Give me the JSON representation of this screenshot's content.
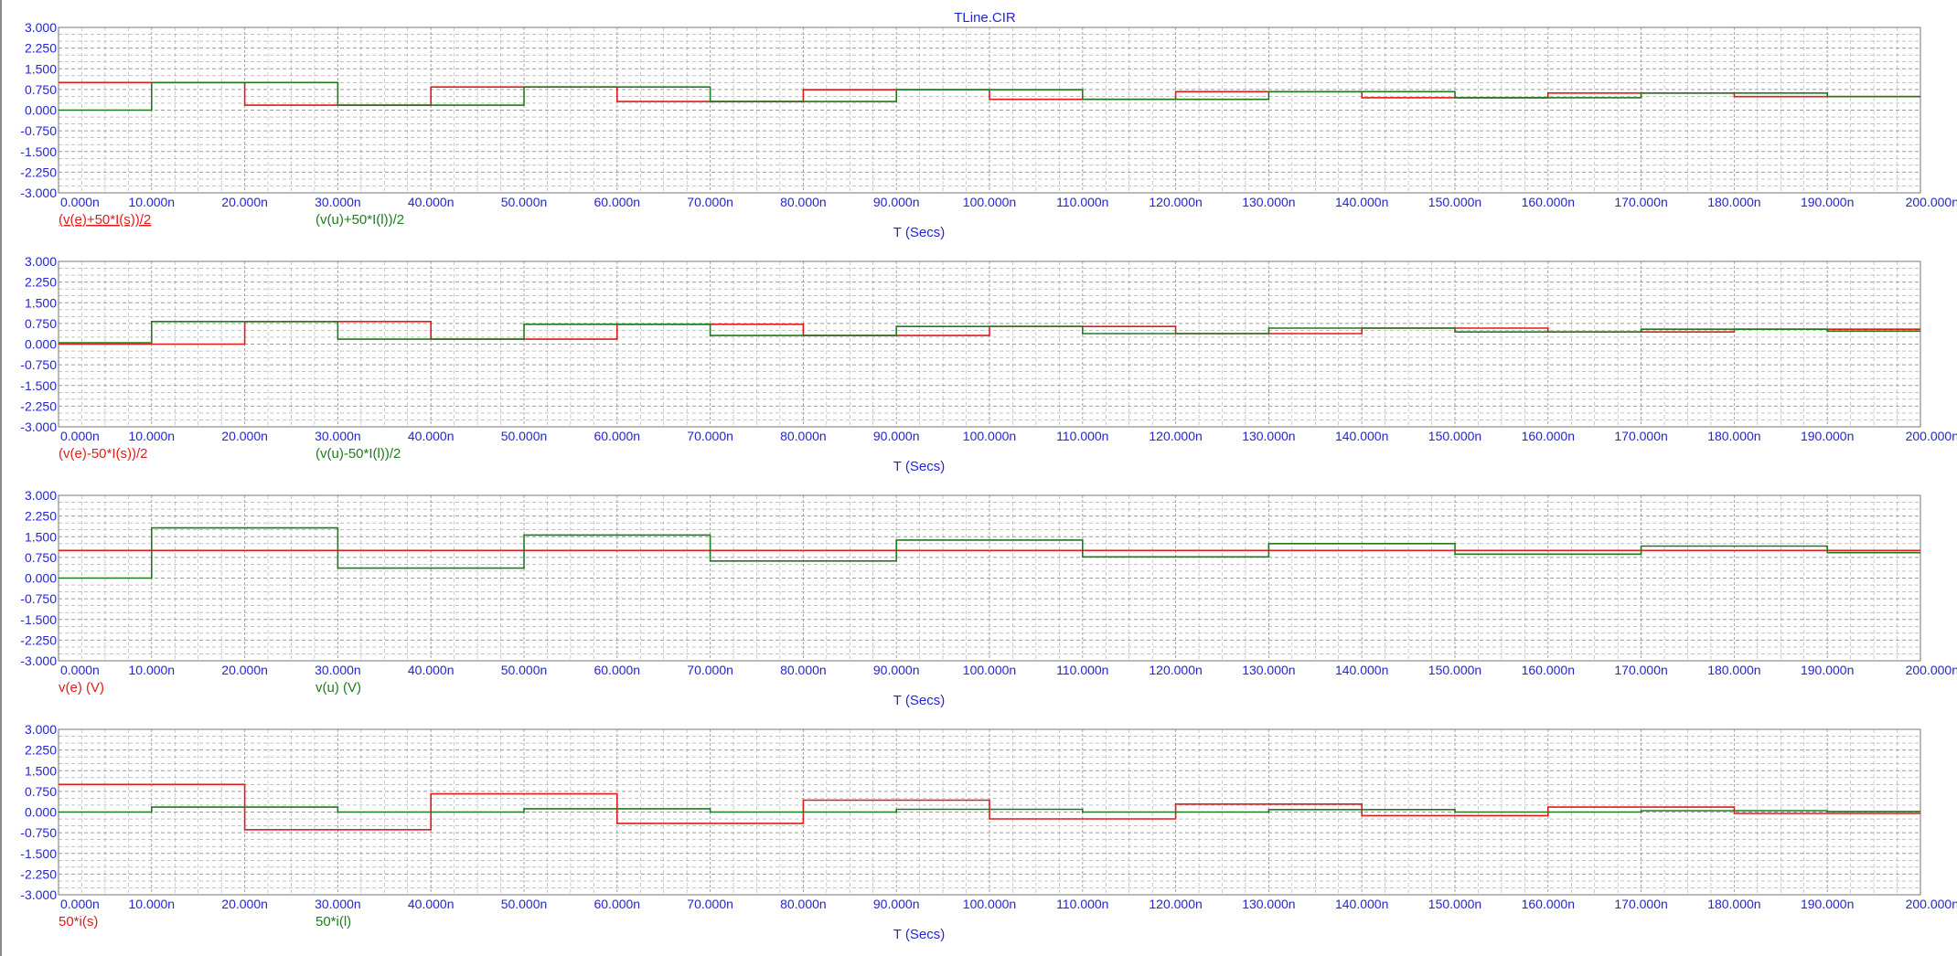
{
  "title": "TLine.CIR",
  "colors": {
    "series1": "#e41a1a",
    "series2": "#1f7a1f",
    "text": "#2424d8",
    "grid": "#9a9a9a",
    "frame": "#8c8c8c"
  },
  "chart_data": [
    {
      "type": "line",
      "step": true,
      "xlabel": "T (Secs)",
      "xlim": [
        0,
        200
      ],
      "ylim": [
        -3,
        3
      ],
      "grid": true,
      "xticks": [
        "0.000n",
        "10.000n",
        "20.000n",
        "30.000n",
        "40.000n",
        "50.000n",
        "60.000n",
        "70.000n",
        "80.000n",
        "90.000n",
        "100.000n",
        "110.000n",
        "120.000n",
        "130.000n",
        "140.000n",
        "150.000n",
        "160.000n",
        "170.000n",
        "180.000n",
        "190.000n",
        "200.000n"
      ],
      "yticks": [
        "3.000",
        "2.250",
        "1.500",
        "0.750",
        "0.000",
        "-0.750",
        "-1.500",
        "-2.250",
        "-3.000"
      ],
      "series": [
        {
          "name": "(v(e)+50*I(s))/2",
          "color": "#e41a1a",
          "underline": true,
          "x": [
            0,
            10,
            20,
            30,
            40,
            50,
            60,
            70,
            80,
            90,
            100,
            110,
            120,
            130,
            140,
            150,
            160,
            170,
            180,
            190
          ],
          "values": [
            1.0,
            1.0,
            0.18,
            0.18,
            0.84,
            0.84,
            0.31,
            0.31,
            0.74,
            0.74,
            0.39,
            0.39,
            0.67,
            0.67,
            0.45,
            0.45,
            0.62,
            0.62,
            0.49,
            0.49
          ]
        },
        {
          "name": "(v(u)+50*I(l))/2",
          "color": "#1f7a1f",
          "underline": false,
          "x": [
            0,
            10,
            20,
            30,
            40,
            50,
            60,
            70,
            80,
            90,
            100,
            110,
            120,
            130,
            140,
            150,
            160,
            170,
            180,
            190
          ],
          "values": [
            0.0,
            1.0,
            1.0,
            0.18,
            0.18,
            0.84,
            0.84,
            0.31,
            0.31,
            0.74,
            0.74,
            0.39,
            0.39,
            0.67,
            0.67,
            0.45,
            0.45,
            0.62,
            0.62,
            0.49
          ]
        }
      ]
    },
    {
      "type": "line",
      "step": true,
      "xlabel": "T (Secs)",
      "xlim": [
        0,
        200
      ],
      "ylim": [
        -3,
        3
      ],
      "grid": true,
      "xticks": [
        "0.000n",
        "10.000n",
        "20.000n",
        "30.000n",
        "40.000n",
        "50.000n",
        "60.000n",
        "70.000n",
        "80.000n",
        "90.000n",
        "100.000n",
        "110.000n",
        "120.000n",
        "130.000n",
        "140.000n",
        "150.000n",
        "160.000n",
        "170.000n",
        "180.000n",
        "190.000n",
        "200.000n"
      ],
      "yticks": [
        "3.000",
        "2.250",
        "1.500",
        "0.750",
        "0.000",
        "-0.750",
        "-1.500",
        "-2.250",
        "-3.000"
      ],
      "series": [
        {
          "name": "(v(e)-50*I(s))/2",
          "color": "#e41a1a",
          "underline": false,
          "x": [
            0,
            10,
            20,
            30,
            40,
            50,
            60,
            70,
            80,
            90,
            100,
            110,
            120,
            130,
            140,
            150,
            160,
            170,
            180,
            190
          ],
          "values": [
            0.0,
            0.0,
            0.82,
            0.82,
            0.18,
            0.18,
            0.72,
            0.72,
            0.31,
            0.31,
            0.64,
            0.64,
            0.38,
            0.38,
            0.58,
            0.58,
            0.44,
            0.44,
            0.54,
            0.54
          ]
        },
        {
          "name": "(v(u)-50*I(l))/2",
          "color": "#1f7a1f",
          "underline": false,
          "x": [
            0,
            10,
            20,
            30,
            40,
            50,
            60,
            70,
            80,
            90,
            100,
            110,
            120,
            130,
            140,
            150,
            160,
            170,
            180,
            190
          ],
          "values": [
            0.05,
            0.82,
            0.82,
            0.18,
            0.18,
            0.72,
            0.72,
            0.31,
            0.31,
            0.64,
            0.64,
            0.38,
            0.38,
            0.58,
            0.58,
            0.44,
            0.44,
            0.54,
            0.54,
            0.47
          ]
        }
      ]
    },
    {
      "type": "line",
      "step": true,
      "xlabel": "T (Secs)",
      "xlim": [
        0,
        200
      ],
      "ylim": [
        -3,
        3
      ],
      "grid": true,
      "xticks": [
        "0.000n",
        "10.000n",
        "20.000n",
        "30.000n",
        "40.000n",
        "50.000n",
        "60.000n",
        "70.000n",
        "80.000n",
        "90.000n",
        "100.000n",
        "110.000n",
        "120.000n",
        "130.000n",
        "140.000n",
        "150.000n",
        "160.000n",
        "170.000n",
        "180.000n",
        "190.000n",
        "200.000n"
      ],
      "yticks": [
        "3.000",
        "2.250",
        "1.500",
        "0.750",
        "0.000",
        "-0.750",
        "-1.500",
        "-2.250",
        "-3.000"
      ],
      "series": [
        {
          "name": "v(e) (V)",
          "color": "#e41a1a",
          "underline": false,
          "x": [
            0,
            10,
            20,
            30,
            40,
            50,
            60,
            70,
            80,
            90,
            100,
            110,
            120,
            130,
            140,
            150,
            160,
            170,
            180,
            190
          ],
          "values": [
            1.0,
            1.0,
            1.0,
            1.0,
            1.0,
            1.0,
            1.0,
            1.0,
            1.0,
            1.0,
            1.0,
            1.0,
            1.0,
            1.0,
            1.0,
            1.0,
            1.0,
            1.0,
            1.0,
            1.0
          ]
        },
        {
          "name": "v(u) (V)",
          "color": "#1f7a1f",
          "underline": false,
          "x": [
            0,
            10,
            20,
            30,
            40,
            50,
            60,
            70,
            80,
            90,
            100,
            110,
            120,
            130,
            140,
            150,
            160,
            170,
            180,
            190
          ],
          "values": [
            0.0,
            1.82,
            1.82,
            0.36,
            0.36,
            1.56,
            1.56,
            0.62,
            0.62,
            1.38,
            1.38,
            0.77,
            0.77,
            1.25,
            1.25,
            0.87,
            0.87,
            1.16,
            1.16,
            0.92
          ]
        }
      ]
    },
    {
      "type": "line",
      "step": true,
      "xlabel": "T (Secs)",
      "xlim": [
        0,
        200
      ],
      "ylim": [
        -3,
        3
      ],
      "grid": true,
      "xticks": [
        "0.000n",
        "10.000n",
        "20.000n",
        "30.000n",
        "40.000n",
        "50.000n",
        "60.000n",
        "70.000n",
        "80.000n",
        "90.000n",
        "100.000n",
        "110.000n",
        "120.000n",
        "130.000n",
        "140.000n",
        "150.000n",
        "160.000n",
        "170.000n",
        "180.000n",
        "190.000n",
        "200.000n"
      ],
      "yticks": [
        "3.000",
        "2.250",
        "1.500",
        "0.750",
        "0.000",
        "-0.750",
        "-1.500",
        "-2.250",
        "-3.000"
      ],
      "series": [
        {
          "name": "50*i(s)",
          "color": "#e41a1a",
          "underline": false,
          "x": [
            0,
            10,
            20,
            30,
            40,
            50,
            60,
            70,
            80,
            90,
            100,
            110,
            120,
            130,
            140,
            150,
            160,
            170,
            180,
            190
          ],
          "values": [
            1.0,
            1.0,
            -0.64,
            -0.64,
            0.66,
            0.66,
            -0.41,
            -0.41,
            0.43,
            0.43,
            -0.25,
            -0.25,
            0.29,
            0.29,
            -0.13,
            -0.13,
            0.18,
            0.18,
            -0.05,
            -0.05
          ]
        },
        {
          "name": "50*i(l)",
          "color": "#1f7a1f",
          "underline": false,
          "x": [
            0,
            10,
            20,
            30,
            40,
            50,
            60,
            70,
            80,
            90,
            100,
            110,
            120,
            130,
            140,
            150,
            160,
            170,
            180,
            190
          ],
          "values": [
            0.0,
            0.18,
            0.18,
            0.0,
            0.0,
            0.12,
            0.12,
            0.0,
            0.0,
            0.1,
            0.1,
            0.0,
            0.0,
            0.09,
            0.09,
            0.0,
            0.0,
            0.05,
            0.05,
            0.02
          ]
        }
      ]
    }
  ]
}
